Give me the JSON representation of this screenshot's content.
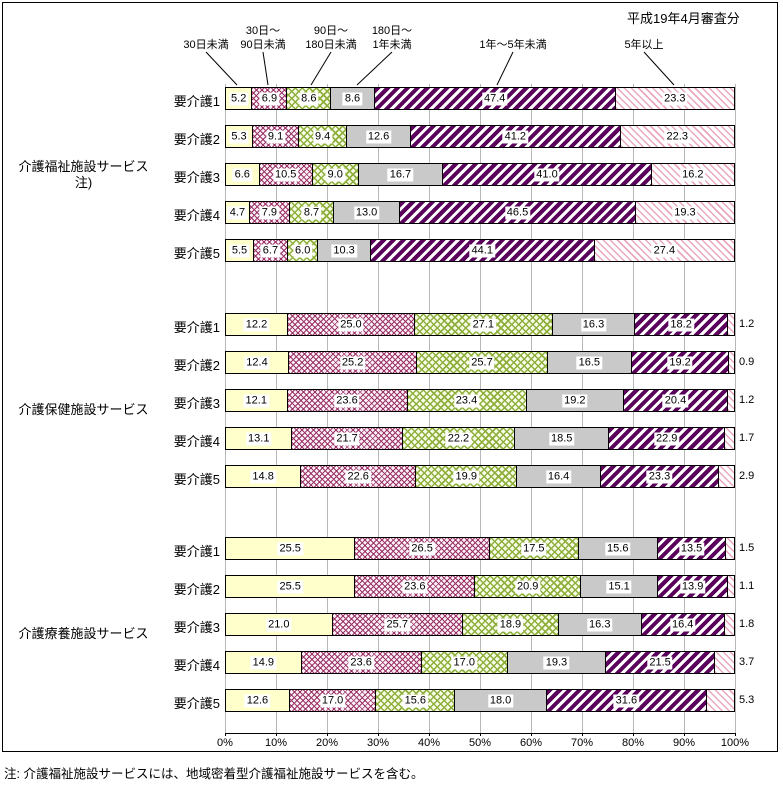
{
  "title": "平成19年4月審査分",
  "note": "注: 介護福祉施設サービスには、地域密着型介護福祉施設サービスを含む。",
  "legend": [
    {
      "lines": [
        "30日未満"
      ]
    },
    {
      "lines": [
        "30日～",
        "90日未満"
      ]
    },
    {
      "lines": [
        "90日～",
        "180日未満"
      ]
    },
    {
      "lines": [
        "180日～",
        "1年未満"
      ]
    },
    {
      "lines": [
        "1年～5年未満"
      ]
    },
    {
      "lines": [
        "5年以上"
      ]
    }
  ],
  "chart_data": {
    "type": "bar",
    "stacked": true,
    "orientation": "horizontal",
    "unit": "%",
    "xlim": [
      0,
      100
    ],
    "grid": true,
    "x_ticks": [
      "0%",
      "10%",
      "20%",
      "30%",
      "40%",
      "50%",
      "60%",
      "70%",
      "80%",
      "90%",
      "100%"
    ],
    "segments": [
      "30日未満",
      "30日～90日未満",
      "90日～180日未満",
      "180日～1年未満",
      "1年～5年未満",
      "5年以上"
    ],
    "colors": {
      "lt30d": "#ffffcc",
      "d30_90_hatch": "#993366",
      "d90_180_hatch": "#8faf3c",
      "d180_1y": "#c9c9c9",
      "y1_5_stripe": "#5a015b",
      "y5plus_stripe": "#eaa8bc"
    },
    "groups": [
      {
        "name": "介護福祉施設サービス",
        "name_lines": [
          "介護福祉施設サービス",
          "注)"
        ],
        "rows": [
          {
            "label": "要介護1",
            "values": [
              5.2,
              6.9,
              8.6,
              8.6,
              47.4,
              23.3
            ]
          },
          {
            "label": "要介護2",
            "values": [
              5.3,
              9.1,
              9.4,
              12.6,
              41.2,
              22.3
            ]
          },
          {
            "label": "要介護3",
            "values": [
              6.6,
              10.5,
              9.0,
              16.7,
              41.0,
              16.2
            ]
          },
          {
            "label": "要介護4",
            "values": [
              4.7,
              7.9,
              8.7,
              13.0,
              46.5,
              19.3
            ]
          },
          {
            "label": "要介護5",
            "values": [
              5.5,
              6.7,
              6.0,
              10.3,
              44.1,
              27.4
            ]
          }
        ]
      },
      {
        "name": "介護保健施設サービス",
        "name_lines": [
          "介護保健施設サービス"
        ],
        "rows": [
          {
            "label": "要介護1",
            "values": [
              12.2,
              25.0,
              27.1,
              16.3,
              18.2,
              1.2
            ]
          },
          {
            "label": "要介護2",
            "values": [
              12.4,
              25.2,
              25.7,
              16.5,
              19.2,
              0.9
            ]
          },
          {
            "label": "要介護3",
            "values": [
              12.1,
              23.6,
              23.4,
              19.2,
              20.4,
              1.2
            ]
          },
          {
            "label": "要介護4",
            "values": [
              13.1,
              21.7,
              22.2,
              18.5,
              22.9,
              1.7
            ]
          },
          {
            "label": "要介護5",
            "values": [
              14.8,
              22.6,
              19.9,
              16.4,
              23.3,
              2.9
            ]
          }
        ]
      },
      {
        "name": "介護療養施設サービス",
        "name_lines": [
          "介護療養施設サービス"
        ],
        "rows": [
          {
            "label": "要介護1",
            "values": [
              25.5,
              26.5,
              17.5,
              15.6,
              13.5,
              1.5
            ]
          },
          {
            "label": "要介護2",
            "values": [
              25.5,
              23.6,
              20.9,
              15.1,
              13.9,
              1.1
            ]
          },
          {
            "label": "要介護3",
            "values": [
              21.0,
              25.7,
              18.9,
              16.3,
              16.4,
              1.8
            ]
          },
          {
            "label": "要介護4",
            "values": [
              14.9,
              23.6,
              17.0,
              19.3,
              21.5,
              3.7
            ]
          },
          {
            "label": "要介護5",
            "values": [
              12.6,
              17.0,
              15.6,
              18.0,
              31.6,
              5.3
            ]
          }
        ]
      }
    ]
  }
}
